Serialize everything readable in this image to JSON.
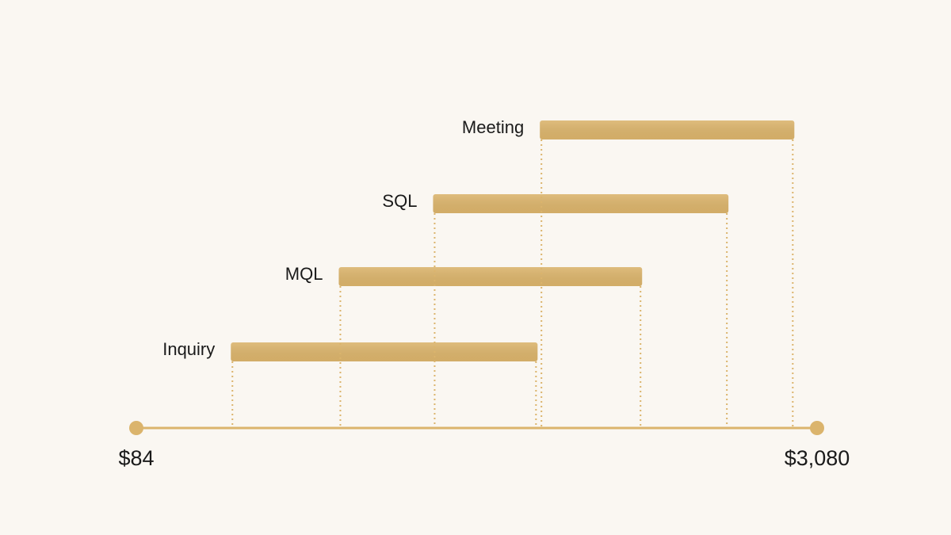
{
  "chart_data": {
    "type": "range-bar",
    "categories": [
      "Inquiry",
      "MQL",
      "SQL",
      "Meeting"
    ],
    "low": [
      500,
      975,
      1390,
      1860
    ],
    "high": [
      1850,
      2310,
      2690,
      2980
    ],
    "color": "#dbb46c",
    "xlim": [
      84,
      3080
    ],
    "xticks": [
      {
        "value": 84,
        "label": "$84"
      },
      {
        "value": 3080,
        "label": "$3,080"
      }
    ]
  }
}
